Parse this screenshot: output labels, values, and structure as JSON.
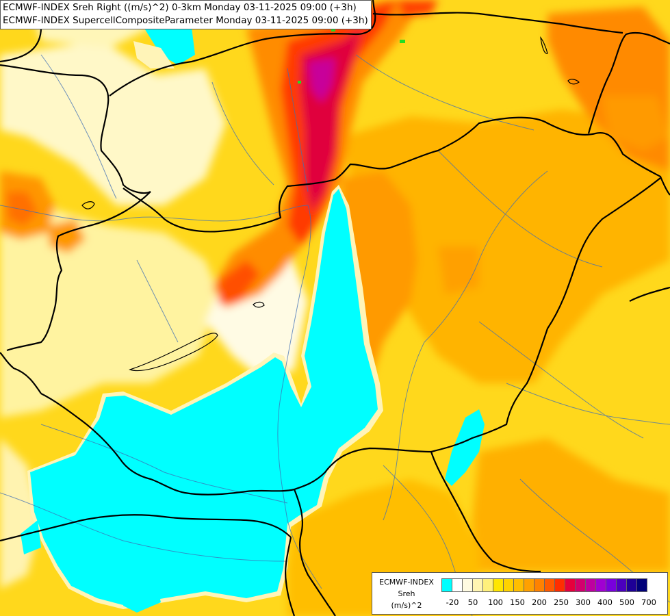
{
  "title": {
    "line1": "ECMWF-INDEX Sreh Right ((m/s)^2) 0-3km Monday 03-11-2025 09:00 (+3h)",
    "line2": "ECMWF-INDEX SupercellCompositeParameter Monday 03-11-2025 09:00 (+3h)"
  },
  "legend": {
    "label1": "ECMWF-INDEX",
    "label2": "Sreh",
    "label3": "(m/s)^2",
    "colors": [
      "#00ffff",
      "#ffffff",
      "#fffbe1",
      "#fff5b2",
      "#fff07c",
      "#ffe600",
      "#ffd200",
      "#ffbe00",
      "#ffa000",
      "#ff8200",
      "#ff5a00",
      "#ff2d00",
      "#e6003c",
      "#d2006e",
      "#be00a0",
      "#a000d2",
      "#7800dc",
      "#4b00be",
      "#1e0096",
      "#000078"
    ],
    "ticks": [
      "-20",
      "50",
      "100",
      "150",
      "200",
      "250",
      "300",
      "400",
      "500",
      "700"
    ]
  }
}
